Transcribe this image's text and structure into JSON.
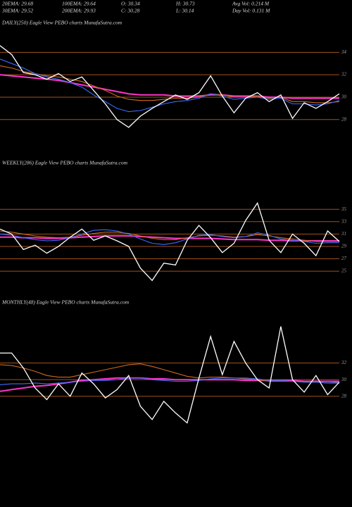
{
  "header": {
    "rows": [
      [
        "20EMA: 29.68",
        "100EMA: 29.64",
        "O: 30.34",
        "H: 30.73",
        "Avg Vol: 0.214  M"
      ],
      [
        "30EMA: 29.52",
        "200EMA: 29.93",
        "C: 30.28",
        "L: 30.14",
        "Day Vol: 0.131  M"
      ]
    ]
  },
  "chart_data": [
    {
      "type": "line",
      "title": "DAILY(250) Eagle  View  PEBO charts MunafaSutra.com",
      "ylim": [
        26.1,
        34.9
      ],
      "yticks": [
        28,
        30,
        32,
        34
      ],
      "grid": true,
      "grid_color": "#a0521c",
      "series": [
        {
          "color": "#ffffff",
          "values": [
            34.6,
            33.8,
            32.2,
            32.0,
            31.6,
            32.1,
            31.4,
            31.8,
            30.6,
            29.4,
            28.0,
            27.3,
            28.3,
            29.0,
            29.6,
            30.2,
            29.8,
            30.4,
            31.9,
            30.1,
            28.6,
            29.9,
            30.4,
            29.6,
            30.2,
            28.1,
            29.5,
            29.0,
            29.6,
            30.3
          ]
        },
        {
          "color": "#3a6cff",
          "values": [
            33.4,
            33.0,
            32.6,
            32.1,
            31.8,
            31.6,
            31.3,
            30.9,
            30.2,
            29.6,
            29.0,
            28.7,
            28.8,
            29.1,
            29.4,
            29.6,
            29.7,
            29.9,
            30.3,
            30.1,
            29.8,
            29.9,
            30.0,
            29.8,
            29.9,
            29.4,
            29.4,
            29.3,
            29.4,
            29.7
          ]
        },
        {
          "color": "#d2691e",
          "values": [
            32.8,
            32.6,
            32.3,
            32.1,
            31.9,
            31.8,
            31.6,
            31.4,
            31.0,
            30.6,
            30.1,
            29.8,
            29.7,
            29.7,
            29.8,
            29.9,
            29.9,
            30.0,
            30.3,
            30.2,
            30.0,
            30.0,
            30.1,
            29.9,
            30.0,
            29.6,
            29.6,
            29.5,
            29.5,
            29.6
          ]
        },
        {
          "color": "#ff33cc",
          "values": [
            32.0,
            31.9,
            31.8,
            31.7,
            31.6,
            31.5,
            31.3,
            31.1,
            30.9,
            30.7,
            30.5,
            30.3,
            30.2,
            30.2,
            30.2,
            30.1,
            30.1,
            30.1,
            30.2,
            30.2,
            30.1,
            30.1,
            30.1,
            30.0,
            30.0,
            29.9,
            29.9,
            29.9,
            29.9,
            29.9
          ]
        }
      ]
    },
    {
      "type": "line",
      "title": "WEEKLY(286) Eagle  View  PEBO charts MunafaSutra.com",
      "ylim": [
        21.6,
        39.8
      ],
      "yticks": [
        25,
        27,
        29,
        31,
        33,
        35
      ],
      "grid": true,
      "grid_color": "#a0521c",
      "series": [
        {
          "color": "#ffffff",
          "values": [
            31.8,
            31.0,
            28.5,
            29.2,
            27.9,
            29.0,
            30.5,
            31.8,
            30.0,
            30.7,
            29.9,
            29.0,
            25.5,
            23.5,
            26.3,
            26.0,
            30.0,
            32.4,
            30.4,
            28.0,
            29.5,
            33.2,
            36.0,
            30.0,
            28.0,
            31.0,
            29.5,
            27.5,
            31.5,
            29.8
          ]
        },
        {
          "color": "#3a6cff",
          "values": [
            31.0,
            30.8,
            30.4,
            30.1,
            29.9,
            30.0,
            30.4,
            31.0,
            31.6,
            31.7,
            31.5,
            31.0,
            30.2,
            29.5,
            29.3,
            29.6,
            30.2,
            30.8,
            30.9,
            30.6,
            30.4,
            30.6,
            31.2,
            30.8,
            30.2,
            30.0,
            29.8,
            29.5,
            29.6,
            29.6
          ]
        },
        {
          "color": "#d2691e",
          "values": [
            31.5,
            31.3,
            31.0,
            30.7,
            30.5,
            30.4,
            30.5,
            30.8,
            31.1,
            31.3,
            31.3,
            31.1,
            30.7,
            30.3,
            30.1,
            30.1,
            30.4,
            30.7,
            30.8,
            30.7,
            30.5,
            30.6,
            30.9,
            30.7,
            30.4,
            30.2,
            30.0,
            29.8,
            29.8,
            29.8
          ]
        },
        {
          "color": "#ff33cc",
          "values": [
            30.5,
            30.5,
            30.4,
            30.4,
            30.3,
            30.3,
            30.4,
            30.5,
            30.6,
            30.7,
            30.7,
            30.7,
            30.6,
            30.5,
            30.4,
            30.3,
            30.3,
            30.3,
            30.3,
            30.2,
            30.1,
            30.1,
            30.1,
            30.0,
            30.0,
            29.9,
            29.9,
            29.9,
            29.9,
            29.9
          ]
        }
      ]
    },
    {
      "type": "line",
      "title": "MONTHLY(48) Eagle  View  PEBO charts MunafaSutra.com",
      "ylim": [
        24.0,
        38.4
      ],
      "yticks": [
        28,
        30,
        32
      ],
      "grid": true,
      "grid_color": "#a0521c",
      "series": [
        {
          "color": "#ffffff",
          "values": [
            33.2,
            33.2,
            31.4,
            29.0,
            27.6,
            29.5,
            28.0,
            30.8,
            29.5,
            27.8,
            28.8,
            30.5,
            26.8,
            25.2,
            27.4,
            26.0,
            24.8,
            30.2,
            35.2,
            30.6,
            34.6,
            32.0,
            30.0,
            29.0,
            36.4,
            30.0,
            28.5,
            30.5,
            28.2,
            29.7
          ]
        },
        {
          "color": "#3a6cff",
          "values": [
            29.4,
            29.5,
            29.5,
            29.6,
            29.5,
            29.6,
            29.7,
            29.8,
            29.9,
            29.9,
            30.0,
            30.2,
            30.2,
            30.0,
            29.9,
            29.8,
            29.8,
            29.9,
            30.1,
            30.2,
            30.2,
            30.2,
            30.1,
            29.9,
            29.9,
            29.8,
            29.7,
            29.7,
            29.6,
            29.7
          ]
        },
        {
          "color": "#d2691e",
          "values": [
            31.8,
            31.7,
            31.4,
            31.0,
            30.5,
            30.3,
            30.3,
            30.6,
            30.9,
            31.2,
            31.5,
            31.8,
            31.9,
            31.6,
            31.2,
            30.8,
            30.4,
            30.2,
            30.3,
            30.3,
            30.2,
            30.1,
            30.0,
            29.8,
            29.8,
            29.8,
            29.7,
            29.7,
            29.6,
            29.6
          ]
        },
        {
          "color": "#ff33cc",
          "values": [
            28.6,
            28.8,
            29.0,
            29.2,
            29.3,
            29.5,
            29.7,
            29.9,
            30.0,
            30.1,
            30.2,
            30.2,
            30.2,
            30.1,
            30.1,
            30.0,
            30.0,
            30.0,
            30.0,
            30.0,
            30.0,
            29.9,
            29.9,
            29.9,
            29.9,
            29.9,
            29.8,
            29.8,
            29.8,
            29.8
          ]
        }
      ]
    }
  ]
}
